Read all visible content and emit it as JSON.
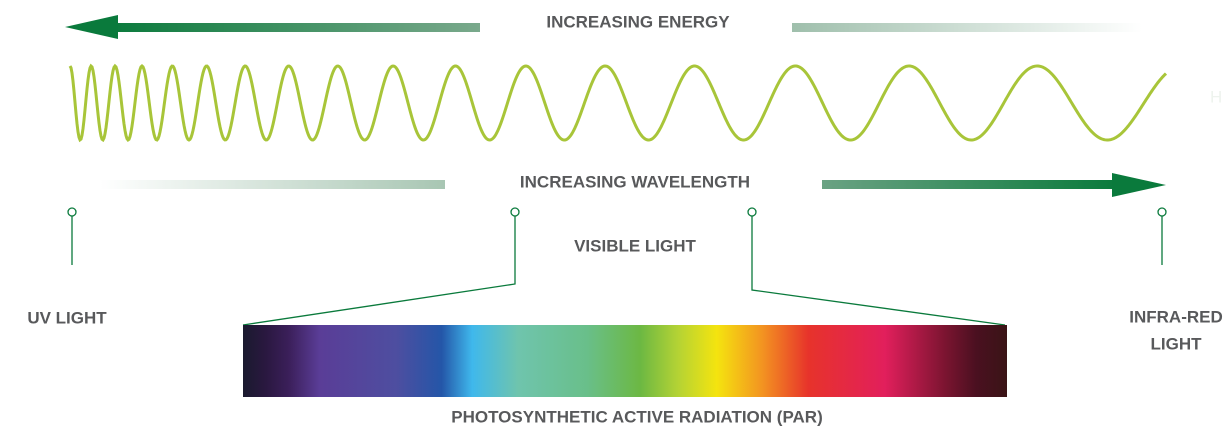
{
  "energy_label": "INCREASING ENERGY",
  "wavelength_label": "INCREASING WAVELENGTH",
  "visible_label": "VISIBLE LIGHT",
  "uv_label": "UV LIGHT",
  "infrared_label": [
    "INFRA-RED",
    "LIGHT"
  ],
  "par_label": "PHOTOSYNTHETIC ACTIVE RADIATION (PAR)",
  "edge_letter": "H"
}
